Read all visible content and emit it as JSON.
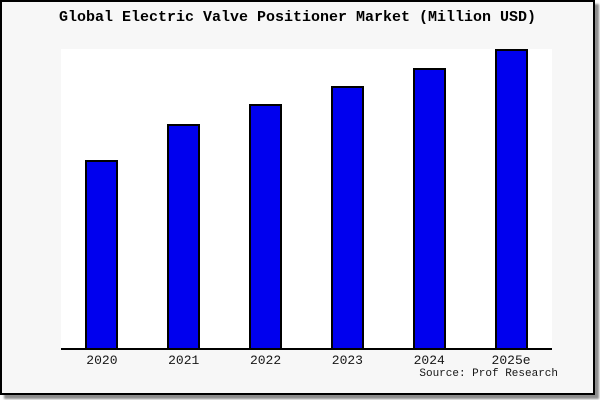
{
  "chart_data": {
    "type": "bar",
    "title": "Global Electric Valve Positioner Market (Million USD)",
    "categories": [
      "2020",
      "2021",
      "2022",
      "2023",
      "2024",
      "2025e"
    ],
    "values_relative": [
      0.63,
      0.75,
      0.815,
      0.875,
      0.937,
      1.0
    ],
    "ylim": [
      0,
      1.0
    ],
    "xlabel": "",
    "ylabel": "",
    "grid": false,
    "legend": "none",
    "y_axis_ticks": "none shown",
    "bar_color": "#0000ee",
    "bar_border_color": "#000000",
    "source_note": "Source: Prof Research"
  },
  "colors": {
    "figure_background": "#f7f7f7",
    "plot_background": "#ffffff",
    "frame_border": "#000000",
    "shadow": "#8c8c8c",
    "text": "#161616"
  }
}
